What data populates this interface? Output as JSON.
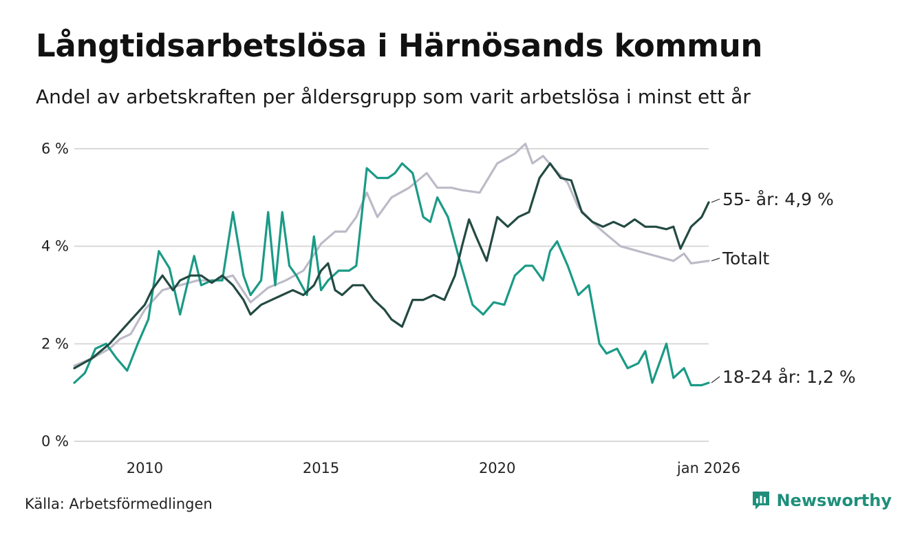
{
  "header": {
    "title": "Långtidsarbetslösa i Härnösands kommun",
    "subtitle": "Andel av arbetskraften per åldersgrupp som varit arbetslösa i minst ett år"
  },
  "footer": {
    "source": "Källa: Arbetsförmedlingen",
    "brand": "Newsworthy"
  },
  "colors": {
    "totalt": "#bdbac8",
    "age_18_24": "#1a9a86",
    "age_55": "#234a42",
    "grid": "#d9d9d9",
    "brand": "#1f8f7a"
  },
  "chart_data": {
    "type": "line",
    "title": "Långtidsarbetslösa i Härnösands kommun",
    "subtitle": "Andel av arbetskraften per åldersgrupp som varit arbetslösa i minst ett år",
    "xlabel": "",
    "ylabel": "",
    "x_range": [
      2008.0,
      2026.0
    ],
    "ylim": [
      0,
      6
    ],
    "y_ticks": [
      {
        "value": 0,
        "label": "0 %"
      },
      {
        "value": 2,
        "label": "2 %"
      },
      {
        "value": 4,
        "label": "4 %"
      },
      {
        "value": 6,
        "label": "6 %"
      }
    ],
    "x_ticks": [
      {
        "value": 2010.0,
        "label": "2010"
      },
      {
        "value": 2015.0,
        "label": "2015"
      },
      {
        "value": 2020.0,
        "label": "2020"
      },
      {
        "value": 2026.0,
        "label": "jan 2026"
      }
    ],
    "grid": true,
    "series": [
      {
        "name": "Totalt",
        "end_label": "Totalt",
        "color_key": "totalt",
        "points": [
          [
            2008.0,
            1.55
          ],
          [
            2008.5,
            1.7
          ],
          [
            2009.0,
            1.9
          ],
          [
            2009.3,
            2.1
          ],
          [
            2009.6,
            2.2
          ],
          [
            2010.0,
            2.7
          ],
          [
            2010.5,
            3.1
          ],
          [
            2011.0,
            3.2
          ],
          [
            2011.5,
            3.3
          ],
          [
            2012.0,
            3.3
          ],
          [
            2012.5,
            3.4
          ],
          [
            2013.0,
            2.85
          ],
          [
            2013.5,
            3.15
          ],
          [
            2014.0,
            3.3
          ],
          [
            2014.5,
            3.5
          ],
          [
            2015.0,
            4.05
          ],
          [
            2015.4,
            4.3
          ],
          [
            2015.7,
            4.3
          ],
          [
            2016.0,
            4.6
          ],
          [
            2016.3,
            5.1
          ],
          [
            2016.6,
            4.6
          ],
          [
            2017.0,
            5.0
          ],
          [
            2017.5,
            5.2
          ],
          [
            2018.0,
            5.5
          ],
          [
            2018.3,
            5.2
          ],
          [
            2018.7,
            5.2
          ],
          [
            2019.0,
            5.15
          ],
          [
            2019.5,
            5.1
          ],
          [
            2020.0,
            5.7
          ],
          [
            2020.5,
            5.9
          ],
          [
            2020.8,
            6.1
          ],
          [
            2021.0,
            5.7
          ],
          [
            2021.3,
            5.85
          ],
          [
            2021.6,
            5.6
          ],
          [
            2022.0,
            5.3
          ],
          [
            2022.3,
            4.8
          ],
          [
            2022.7,
            4.5
          ],
          [
            2023.0,
            4.3
          ],
          [
            2023.5,
            4.0
          ],
          [
            2024.0,
            3.9
          ],
          [
            2024.5,
            3.8
          ],
          [
            2025.0,
            3.7
          ],
          [
            2025.3,
            3.85
          ],
          [
            2025.5,
            3.65
          ],
          [
            2026.0,
            3.7
          ]
        ]
      },
      {
        "name": "18-24 år",
        "end_label": "18-24 år: 1,2 %",
        "color_key": "age_18_24",
        "points": [
          [
            2008.0,
            1.2
          ],
          [
            2008.3,
            1.4
          ],
          [
            2008.6,
            1.9
          ],
          [
            2008.9,
            2.0
          ],
          [
            2009.2,
            1.7
          ],
          [
            2009.5,
            1.45
          ],
          [
            2009.8,
            2.0
          ],
          [
            2010.1,
            2.5
          ],
          [
            2010.4,
            3.9
          ],
          [
            2010.7,
            3.55
          ],
          [
            2011.0,
            2.6
          ],
          [
            2011.2,
            3.2
          ],
          [
            2011.4,
            3.8
          ],
          [
            2011.6,
            3.2
          ],
          [
            2011.9,
            3.3
          ],
          [
            2012.2,
            3.3
          ],
          [
            2012.5,
            4.7
          ],
          [
            2012.8,
            3.4
          ],
          [
            2013.0,
            3.0
          ],
          [
            2013.3,
            3.3
          ],
          [
            2013.5,
            4.7
          ],
          [
            2013.7,
            3.2
          ],
          [
            2013.9,
            4.7
          ],
          [
            2014.1,
            3.6
          ],
          [
            2014.3,
            3.4
          ],
          [
            2014.6,
            3.0
          ],
          [
            2014.8,
            4.2
          ],
          [
            2015.0,
            3.1
          ],
          [
            2015.2,
            3.3
          ],
          [
            2015.5,
            3.5
          ],
          [
            2015.8,
            3.5
          ],
          [
            2016.0,
            3.6
          ],
          [
            2016.3,
            5.6
          ],
          [
            2016.6,
            5.4
          ],
          [
            2016.9,
            5.4
          ],
          [
            2017.1,
            5.5
          ],
          [
            2017.3,
            5.7
          ],
          [
            2017.6,
            5.5
          ],
          [
            2017.9,
            4.6
          ],
          [
            2018.1,
            4.5
          ],
          [
            2018.3,
            5.0
          ],
          [
            2018.6,
            4.6
          ],
          [
            2018.9,
            3.8
          ],
          [
            2019.1,
            3.3
          ],
          [
            2019.3,
            2.8
          ],
          [
            2019.6,
            2.6
          ],
          [
            2019.9,
            2.85
          ],
          [
            2020.2,
            2.8
          ],
          [
            2020.5,
            3.4
          ],
          [
            2020.8,
            3.6
          ],
          [
            2021.0,
            3.6
          ],
          [
            2021.3,
            3.3
          ],
          [
            2021.5,
            3.9
          ],
          [
            2021.7,
            4.1
          ],
          [
            2022.0,
            3.6
          ],
          [
            2022.3,
            3.0
          ],
          [
            2022.6,
            3.2
          ],
          [
            2022.9,
            2.0
          ],
          [
            2023.1,
            1.8
          ],
          [
            2023.4,
            1.9
          ],
          [
            2023.7,
            1.5
          ],
          [
            2024.0,
            1.6
          ],
          [
            2024.2,
            1.85
          ],
          [
            2024.4,
            1.2
          ],
          [
            2024.6,
            1.6
          ],
          [
            2024.8,
            2.0
          ],
          [
            2025.0,
            1.3
          ],
          [
            2025.3,
            1.5
          ],
          [
            2025.5,
            1.15
          ],
          [
            2025.8,
            1.15
          ],
          [
            2026.0,
            1.2
          ]
        ]
      },
      {
        "name": "55- år",
        "end_label": "55- år: 4,9 %",
        "color_key": "age_55",
        "points": [
          [
            2008.0,
            1.5
          ],
          [
            2008.5,
            1.7
          ],
          [
            2009.0,
            2.0
          ],
          [
            2009.5,
            2.4
          ],
          [
            2010.0,
            2.8
          ],
          [
            2010.2,
            3.1
          ],
          [
            2010.5,
            3.4
          ],
          [
            2010.8,
            3.1
          ],
          [
            2011.0,
            3.3
          ],
          [
            2011.3,
            3.4
          ],
          [
            2011.6,
            3.4
          ],
          [
            2011.9,
            3.25
          ],
          [
            2012.2,
            3.4
          ],
          [
            2012.5,
            3.2
          ],
          [
            2012.8,
            2.9
          ],
          [
            2013.0,
            2.6
          ],
          [
            2013.3,
            2.8
          ],
          [
            2013.6,
            2.9
          ],
          [
            2013.9,
            3.0
          ],
          [
            2014.2,
            3.1
          ],
          [
            2014.5,
            3.0
          ],
          [
            2014.8,
            3.2
          ],
          [
            2015.0,
            3.5
          ],
          [
            2015.2,
            3.65
          ],
          [
            2015.4,
            3.1
          ],
          [
            2015.6,
            3.0
          ],
          [
            2015.9,
            3.2
          ],
          [
            2016.2,
            3.2
          ],
          [
            2016.5,
            2.9
          ],
          [
            2016.8,
            2.7
          ],
          [
            2017.0,
            2.5
          ],
          [
            2017.3,
            2.35
          ],
          [
            2017.6,
            2.9
          ],
          [
            2017.9,
            2.9
          ],
          [
            2018.2,
            3.0
          ],
          [
            2018.5,
            2.9
          ],
          [
            2018.8,
            3.4
          ],
          [
            2019.0,
            4.0
          ],
          [
            2019.2,
            4.55
          ],
          [
            2019.4,
            4.2
          ],
          [
            2019.7,
            3.7
          ],
          [
            2020.0,
            4.6
          ],
          [
            2020.3,
            4.4
          ],
          [
            2020.6,
            4.6
          ],
          [
            2020.9,
            4.7
          ],
          [
            2021.2,
            5.4
          ],
          [
            2021.5,
            5.7
          ],
          [
            2021.8,
            5.4
          ],
          [
            2022.1,
            5.35
          ],
          [
            2022.4,
            4.7
          ],
          [
            2022.7,
            4.5
          ],
          [
            2023.0,
            4.4
          ],
          [
            2023.3,
            4.5
          ],
          [
            2023.6,
            4.4
          ],
          [
            2023.9,
            4.55
          ],
          [
            2024.2,
            4.4
          ],
          [
            2024.5,
            4.4
          ],
          [
            2024.8,
            4.35
          ],
          [
            2025.0,
            4.4
          ],
          [
            2025.2,
            3.95
          ],
          [
            2025.5,
            4.4
          ],
          [
            2025.8,
            4.6
          ],
          [
            2026.0,
            4.9
          ]
        ]
      }
    ]
  }
}
